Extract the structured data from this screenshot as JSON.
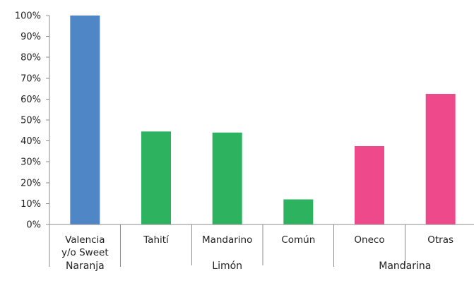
{
  "chart_data": {
    "type": "bar",
    "title": "",
    "xlabel": "",
    "ylabel": "",
    "ylim": [
      0,
      100
    ],
    "y_ticks": [
      "0%",
      "10%",
      "20%",
      "30%",
      "40%",
      "50%",
      "60%",
      "70%",
      "80%",
      "90%",
      "100%"
    ],
    "grid": false,
    "legend": "none",
    "categories": [
      "Valencia y/o Sweet",
      "Tahití",
      "Mandarino",
      "Común",
      "Oneco",
      "Otras"
    ],
    "category_lines": [
      [
        "Valencia",
        "y/o Sweet"
      ],
      [
        "Tahití"
      ],
      [
        "Mandarino"
      ],
      [
        "Común"
      ],
      [
        "Oneco"
      ],
      [
        "Otras"
      ]
    ],
    "values": [
      100,
      44.5,
      44,
      12,
      37.5,
      62.5
    ],
    "groups": [
      {
        "label": "Naranja",
        "categories": [
          "Valencia y/o Sweet"
        ],
        "color": "#4f86c6"
      },
      {
        "label": "Limón",
        "categories": [
          "Tahití",
          "Mandarino",
          "Común"
        ],
        "color": "#2db35f"
      },
      {
        "label": "Mandarina",
        "categories": [
          "Oneco",
          "Otras"
        ],
        "color": "#ee4a8b"
      }
    ]
  }
}
